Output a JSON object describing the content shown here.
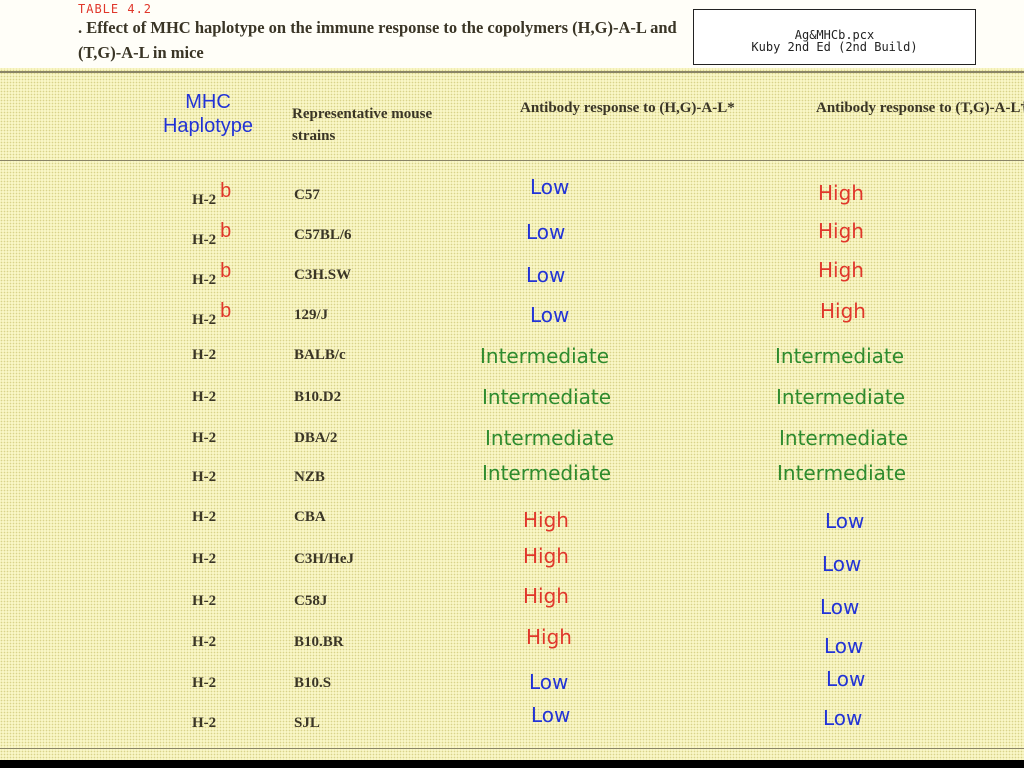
{
  "table_number": "TABLE 4.2",
  "caption": ". Effect of MHC haplotype on the immune response to the copolymers (H,G)-A-L and (T,G)-A-L in mice",
  "file_label": {
    "line1": "Ag&MHCb.pcx",
    "line2": "Kuby 2nd Ed (2nd Build)"
  },
  "columns": {
    "haplotype": "MHC Haplotype",
    "strains": "Representative mouse strains",
    "resp_hg": "Antibody response to (H,G)-A-L*",
    "resp_tg": "Antibody response to (T,G)-A-L†"
  },
  "colors": {
    "low": "#2233d6",
    "high": "#e0372b",
    "intermediate": "#2e8b2e",
    "haplotype_superscript": "#e0372b"
  },
  "rows": [
    {
      "hap": "H-2",
      "sup": "b",
      "strain": "C57",
      "hg": "Low",
      "tg": "High"
    },
    {
      "hap": "H-2",
      "sup": "b",
      "strain": "C57BL/6",
      "hg": "Low",
      "tg": "High"
    },
    {
      "hap": "H-2",
      "sup": "b",
      "strain": "C3H.SW",
      "hg": "Low",
      "tg": "High"
    },
    {
      "hap": "H-2",
      "sup": "b",
      "strain": "129/J",
      "hg": "Low",
      "tg": "High"
    },
    {
      "hap": "H-2",
      "sup": "",
      "strain": "BALB/c",
      "hg": "Intermediate",
      "tg": "Intermediate"
    },
    {
      "hap": "H-2",
      "sup": "",
      "strain": "B10.D2",
      "hg": "Intermediate",
      "tg": "Intermediate"
    },
    {
      "hap": "H-2",
      "sup": "",
      "strain": "DBA/2",
      "hg": "Intermediate",
      "tg": "Intermediate"
    },
    {
      "hap": "H-2",
      "sup": "",
      "strain": "NZB",
      "hg": "Intermediate",
      "tg": "Intermediate"
    },
    {
      "hap": "H-2",
      "sup": "",
      "strain": "CBA",
      "hg": "High",
      "tg": "Low"
    },
    {
      "hap": "H-2",
      "sup": "",
      "strain": "C3H/HeJ",
      "hg": "High",
      "tg": "Low"
    },
    {
      "hap": "H-2",
      "sup": "",
      "strain": "C58J",
      "hg": "High",
      "tg": "Low"
    },
    {
      "hap": "H-2",
      "sup": "",
      "strain": "B10.BR",
      "hg": "High",
      "tg": "Low"
    },
    {
      "hap": "H-2",
      "sup": "",
      "strain": "B10.S",
      "hg": "Low",
      "tg": "Low"
    },
    {
      "hap": "H-2",
      "sup": "",
      "strain": "SJL",
      "hg": "Low",
      "tg": "Low"
    }
  ]
}
